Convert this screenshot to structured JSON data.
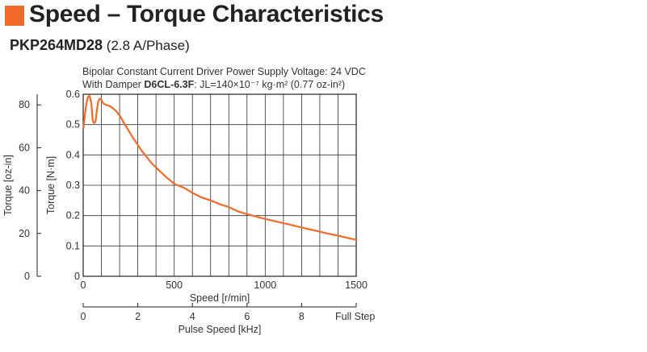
{
  "title": "Speed – Torque Characteristics",
  "model": "PKP264MD28",
  "model_note": "(2.8 A/Phase)",
  "accent_color": "#f26b2a",
  "chart_data": {
    "type": "line",
    "conditions": {
      "line1": "Bipolar Constant Current Driver  Power Supply Voltage: 24 VDC",
      "line2_prefix": "With Damper ",
      "damper_model": "D6CL-6.3F",
      "line2_inertia": ": JL=140×10⁻⁷ kg·m² (0.77 oz-in²)"
    },
    "xlabel": "Speed [r/min]",
    "xlim": [
      0,
      1500
    ],
    "x_ticks": [
      0,
      500,
      1000,
      1500
    ],
    "x_minor_step": 100,
    "ylabel_left": "Torque [N·m]",
    "ylim": [
      0,
      0.6
    ],
    "y_ticks": [
      0,
      0.1,
      0.2,
      0.3,
      0.4,
      0.5,
      0.6
    ],
    "ylabel_outer": "Torque [oz-in]",
    "y_outer_ticks": [
      0,
      20,
      40,
      60,
      80
    ],
    "x2label": "Pulse Speed [kHz]",
    "x2_ticks": [
      0,
      2,
      4,
      6,
      8
    ],
    "x2_end_label": "Full Step",
    "grid": true,
    "series": [
      {
        "color": "#f26b2a",
        "x": [
          2,
          8,
          15,
          25,
          35,
          45,
          52,
          60,
          68,
          75,
          82,
          90,
          100,
          110,
          125,
          150,
          180,
          200,
          230,
          270,
          320,
          380,
          450,
          500,
          560,
          600,
          650,
          700,
          750,
          800,
          850,
          900,
          950,
          1000,
          1050,
          1100,
          1150,
          1200,
          1250,
          1300,
          1350,
          1400,
          1450,
          1500
        ],
        "y": [
          0.49,
          0.525,
          0.56,
          0.59,
          0.595,
          0.57,
          0.515,
          0.505,
          0.51,
          0.545,
          0.575,
          0.585,
          0.582,
          0.57,
          0.565,
          0.56,
          0.545,
          0.53,
          0.5,
          0.46,
          0.415,
          0.37,
          0.33,
          0.305,
          0.29,
          0.275,
          0.26,
          0.25,
          0.238,
          0.228,
          0.214,
          0.205,
          0.197,
          0.189,
          0.182,
          0.175,
          0.168,
          0.161,
          0.154,
          0.147,
          0.14,
          0.134,
          0.127,
          0.12
        ]
      }
    ]
  }
}
